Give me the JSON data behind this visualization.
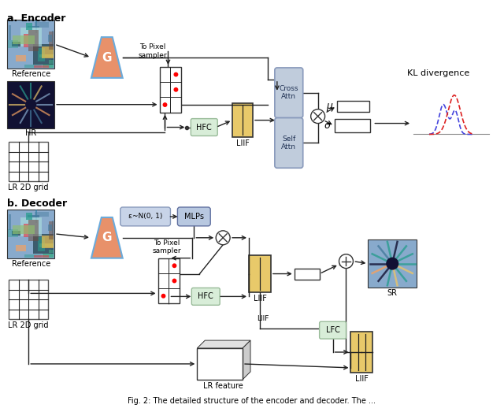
{
  "bg_color": "#ffffff",
  "encoder_label": "a. Encoder",
  "decoder_label": "b. Decoder",
  "G_color": "#E8916A",
  "G_border": "#6aabdc",
  "LIIF_color": "#E8C96A",
  "HFC_color": "#D8EDD8",
  "LFC_color": "#D8EDD8",
  "MLPs_color": "#B8C8E0",
  "eps_color": "#C8D4E8",
  "attn_color": "#C0CCDC",
  "attn_border": "#8899bb",
  "KL_label": "KL divergence",
  "mu_label": "μ",
  "sigma_label": "σ",
  "SR_label": "SR",
  "LIIF_label": "LIIF",
  "HFC_label": "HFC",
  "LFC_label": "LFC",
  "MLPs_label": "MLPs",
  "eps_label": "ε~N(0, 1)",
  "G_label": "G",
  "pixel_sampler_label": "To Pixel\nsampler",
  "Reference_label": "Reference",
  "HR_label": "HR",
  "LR_label": "LR 2D grid",
  "LR_feature_label": "LR feature"
}
